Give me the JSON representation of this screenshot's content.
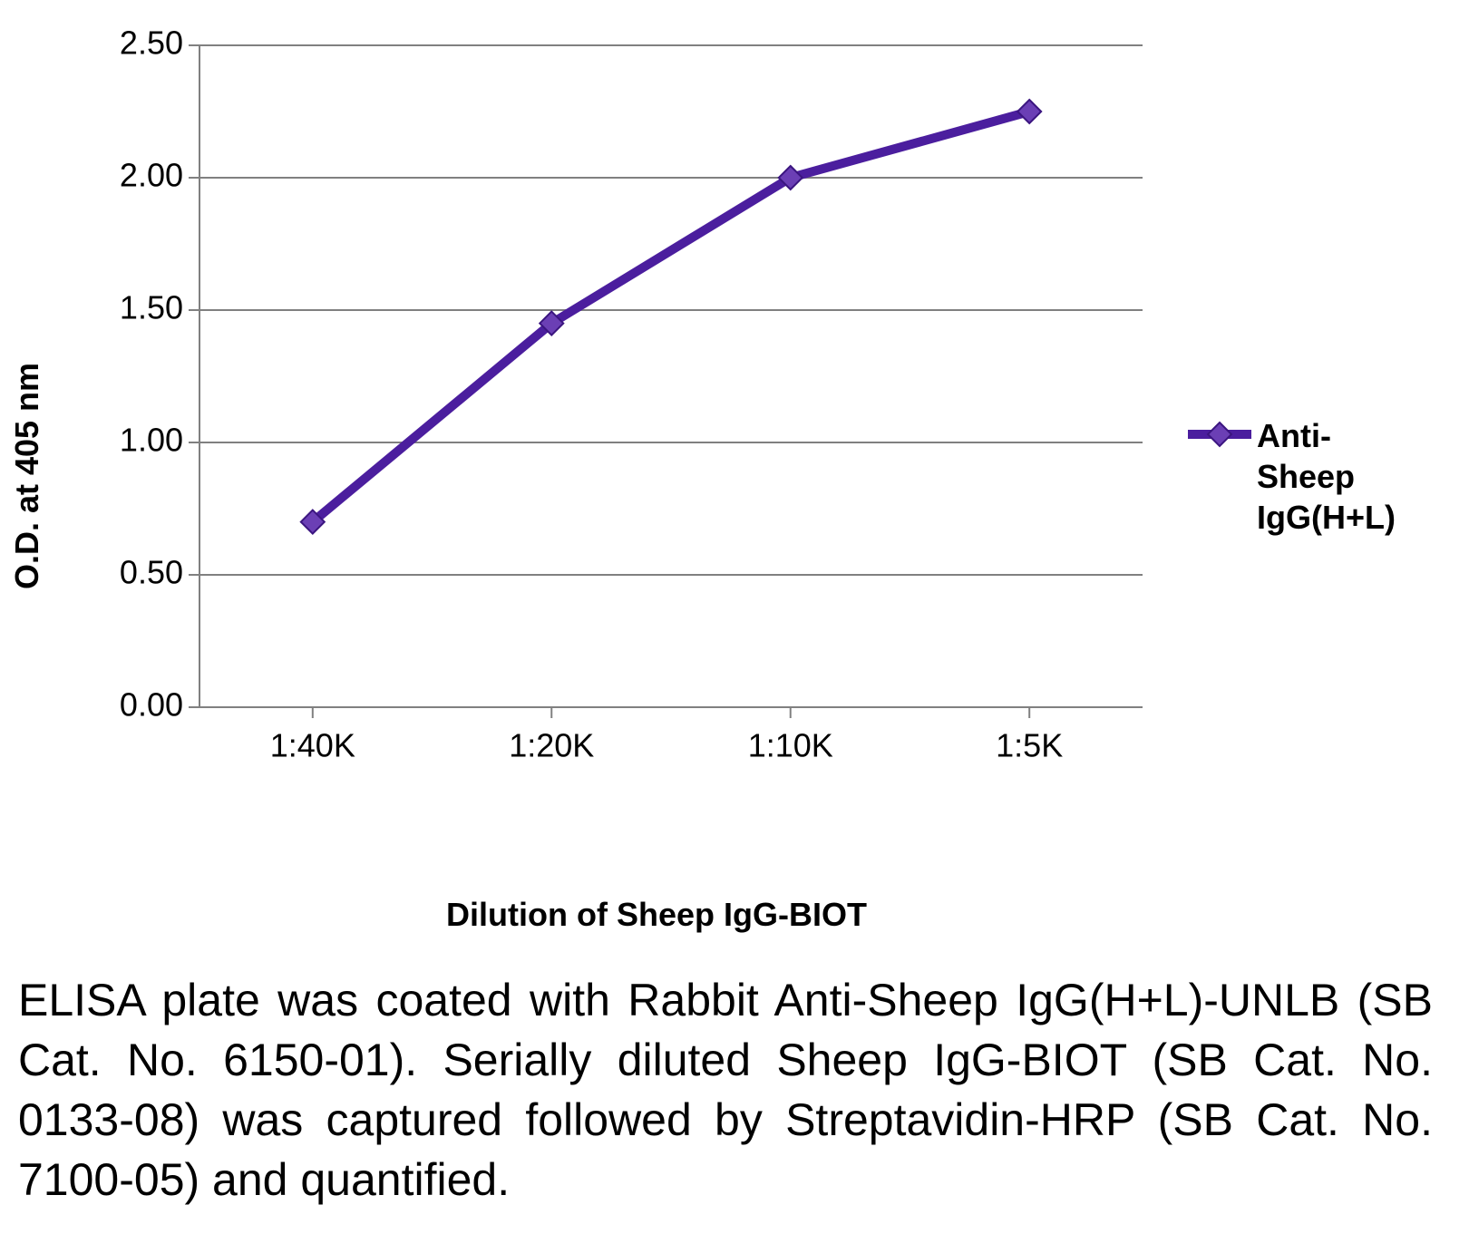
{
  "chart": {
    "type": "line",
    "y_axis_label": "O.D. at 405 nm",
    "x_axis_label": "Dilution of Sheep IgG-BIOT",
    "ylim": [
      0.0,
      2.5
    ],
    "yticks": [
      0.0,
      0.5,
      1.0,
      1.5,
      2.0,
      2.5
    ],
    "ytick_labels": [
      "0.00",
      "0.50",
      "1.00",
      "1.50",
      "2.00",
      "2.50"
    ],
    "x_categories": [
      "1:40K",
      "1:20K",
      "1:10K",
      "1:5K"
    ],
    "series": {
      "name": "Anti-Sheep IgG(H+L)",
      "values": [
        0.7,
        1.45,
        2.0,
        2.25
      ],
      "line_color": "#4b1e9e",
      "line_width": 10,
      "marker_shape": "diamond",
      "marker_size": 18,
      "marker_fill": "#6b3fb5",
      "marker_stroke": "#3b1580"
    },
    "background_color": "#ffffff",
    "grid_color": "#808080",
    "axis_color": "#808080",
    "label_fontsize_pt": 27,
    "tick_fontsize_pt": 27,
    "tick_mark_length": 12
  },
  "legend": {
    "label_line1": "Anti-Sheep",
    "label_line2": "IgG(H+L)"
  },
  "caption": {
    "text": "ELISA plate was coated with Rabbit Anti-Sheep IgG(H+L)-UNLB (SB Cat. No. 6150-01).  Serially diluted Sheep IgG-BIOT (SB Cat. No. 0133-08) was captured followed by Streptavidin-HRP (SB Cat. No. 7100-05) and quantified."
  }
}
